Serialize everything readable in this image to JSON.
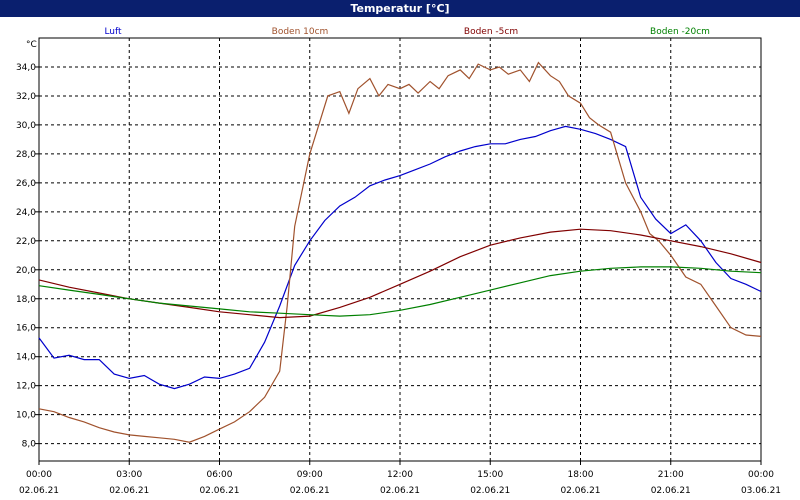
{
  "window": {
    "title": "Temperatur [°C]"
  },
  "chart_data": {
    "type": "line",
    "title": "Temperatur [°C]",
    "ylabel": "°C",
    "xlabel": "",
    "ylim": [
      6.8,
      36.0
    ],
    "xlim": [
      0,
      24
    ],
    "grid": true,
    "legend_position": "top",
    "y_ticks": [
      8,
      10,
      12,
      14,
      16,
      18,
      20,
      22,
      24,
      26,
      28,
      30,
      32,
      34
    ],
    "y_tick_labels": [
      "8,0",
      "10,0",
      "12,0",
      "14,0",
      "16,0",
      "18,0",
      "20,0",
      "22,0",
      "24,0",
      "26,0",
      "28,0",
      "30,0",
      "32,0",
      "34,0"
    ],
    "x_ticks": [
      0,
      3,
      6,
      9,
      12,
      15,
      18,
      21,
      24
    ],
    "x_tick_labels": [
      "00:00",
      "03:00",
      "06:00",
      "09:00",
      "12:00",
      "15:00",
      "18:00",
      "21:00",
      "00:00"
    ],
    "x_date_labels": [
      "02.06.21",
      "02.06.21",
      "02.06.21",
      "02.06.21",
      "02.06.21",
      "02.06.21",
      "02.06.21",
      "02.06.21",
      "03.06.21"
    ],
    "series": [
      {
        "name": "Luft",
        "color": "#0000cc",
        "x": [
          0,
          0.5,
          1,
          1.5,
          2,
          2.5,
          3,
          3.5,
          4,
          4.5,
          5,
          5.5,
          6,
          6.5,
          7,
          7.5,
          8,
          8.5,
          9,
          9.5,
          10,
          10.5,
          11,
          11.5,
          12,
          12.5,
          13,
          13.5,
          14,
          14.5,
          15,
          15.5,
          16,
          16.5,
          17,
          17.5,
          18,
          18.5,
          19,
          19.5,
          20,
          20.5,
          21,
          21.5,
          22,
          22.5,
          23,
          23.5,
          24
        ],
        "values": [
          15.3,
          13.9,
          14.1,
          13.8,
          13.8,
          12.8,
          12.5,
          12.7,
          12.1,
          11.8,
          12.1,
          12.6,
          12.5,
          12.8,
          13.2,
          15.0,
          17.5,
          20.3,
          22.0,
          23.4,
          24.4,
          25.0,
          25.8,
          26.2,
          26.5,
          26.9,
          27.3,
          27.8,
          28.2,
          28.5,
          28.7,
          28.7,
          29.0,
          29.2,
          29.6,
          29.9,
          29.7,
          29.4,
          29.0,
          28.5,
          25.0,
          23.5,
          22.5,
          23.1,
          22.0,
          20.5,
          19.4,
          19.0,
          18.5
        ]
      },
      {
        "name": "Boden 10cm",
        "color": "#a0522d",
        "x": [
          0,
          0.5,
          1,
          1.5,
          2,
          2.5,
          3,
          3.5,
          4,
          4.5,
          5,
          5.5,
          6,
          6.5,
          7,
          7.5,
          8,
          8.25,
          8.5,
          9,
          9.3,
          9.6,
          10,
          10.3,
          10.6,
          11,
          11.3,
          11.6,
          12,
          12.3,
          12.6,
          13,
          13.3,
          13.6,
          14,
          14.3,
          14.6,
          15,
          15.3,
          15.6,
          16,
          16.3,
          16.6,
          17,
          17.3,
          17.6,
          18,
          18.3,
          18.6,
          19,
          19.5,
          20,
          20.3,
          20.6,
          21,
          21.5,
          22,
          22.5,
          23,
          23.5,
          24
        ],
        "values": [
          10.4,
          10.2,
          9.8,
          9.5,
          9.1,
          8.8,
          8.6,
          8.5,
          8.4,
          8.3,
          8.1,
          8.5,
          9.0,
          9.5,
          10.2,
          11.2,
          13.0,
          17.5,
          23.0,
          28.0,
          30.0,
          32.0,
          32.3,
          30.8,
          32.5,
          33.2,
          32.0,
          32.8,
          32.5,
          32.8,
          32.2,
          33.0,
          32.5,
          33.4,
          33.8,
          33.2,
          34.2,
          33.8,
          34.0,
          33.5,
          33.8,
          33.0,
          34.3,
          33.4,
          33.0,
          32.0,
          31.5,
          30.5,
          30.0,
          29.5,
          26.0,
          24.0,
          22.5,
          22.0,
          21.0,
          19.5,
          19.0,
          17.5,
          16.0,
          15.5,
          15.4
        ]
      },
      {
        "name": "Boden -5cm",
        "color": "#800000",
        "x": [
          0,
          1,
          2,
          3,
          4,
          5,
          6,
          7,
          8,
          9,
          10,
          11,
          12,
          13,
          14,
          15,
          16,
          17,
          18,
          19,
          20,
          21,
          22,
          23,
          24
        ],
        "values": [
          19.3,
          18.8,
          18.4,
          18.0,
          17.7,
          17.4,
          17.1,
          16.9,
          16.7,
          16.8,
          17.4,
          18.1,
          19.0,
          19.9,
          20.9,
          21.7,
          22.2,
          22.6,
          22.8,
          22.7,
          22.4,
          22.0,
          21.6,
          21.1,
          20.5
        ]
      },
      {
        "name": "Boden -20cm",
        "color": "#008000",
        "x": [
          0,
          1,
          2,
          3,
          4,
          5,
          6,
          7,
          8,
          9,
          10,
          11,
          12,
          13,
          14,
          15,
          16,
          17,
          18,
          19,
          20,
          21,
          22,
          23,
          24
        ],
        "values": [
          18.9,
          18.6,
          18.3,
          18.0,
          17.7,
          17.5,
          17.3,
          17.1,
          17.0,
          16.9,
          16.8,
          16.9,
          17.2,
          17.6,
          18.1,
          18.6,
          19.1,
          19.6,
          19.9,
          20.1,
          20.2,
          20.2,
          20.1,
          19.9,
          19.8
        ]
      }
    ]
  }
}
